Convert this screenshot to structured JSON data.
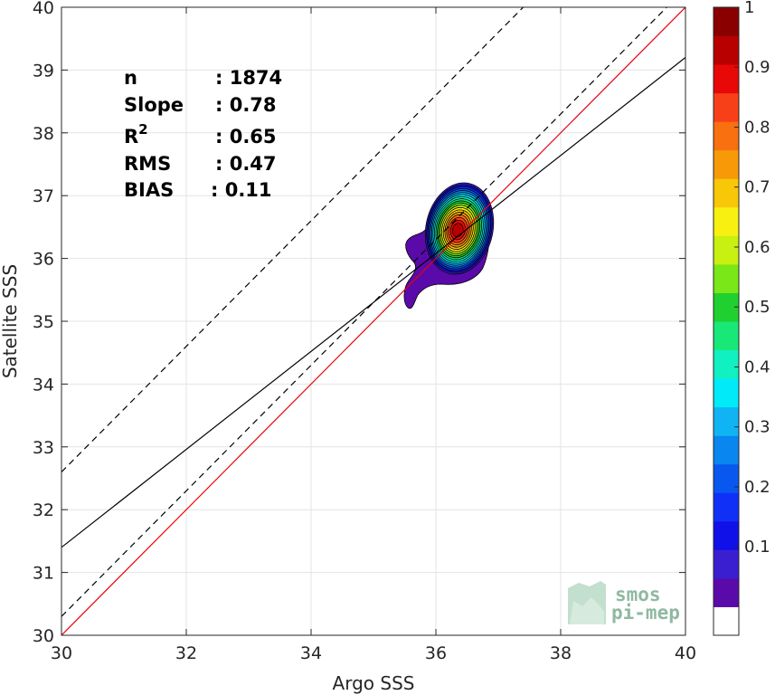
{
  "chart_data": {
    "type": "scatter",
    "subtype": "density-contour",
    "xlabel": "Argo SSS",
    "ylabel": "Satellite SSS",
    "xlim": [
      30,
      40
    ],
    "ylim": [
      30,
      40
    ],
    "xticks": [
      30,
      32,
      34,
      36,
      38,
      40
    ],
    "yticks": [
      30,
      31,
      32,
      33,
      34,
      35,
      36,
      37,
      38,
      39,
      40
    ],
    "grid": true,
    "density_peak": {
      "x": 36.35,
      "y": 36.45
    },
    "density_levels": [
      0.05,
      0.1,
      0.15,
      0.2,
      0.25,
      0.3,
      0.35,
      0.4,
      0.45,
      0.5,
      0.55,
      0.6,
      0.65,
      0.7,
      0.75,
      0.8,
      0.85,
      0.9,
      0.95,
      1.0
    ],
    "lines": [
      {
        "name": "1:1",
        "color": "#e8000b",
        "style": "solid",
        "slope": 1.0,
        "intercept": 0.0
      },
      {
        "name": "regression",
        "color": "#000000",
        "style": "solid",
        "slope": 0.78,
        "intercept": 8.0
      },
      {
        "name": "upper",
        "color": "#000000",
        "style": "dashed",
        "slope": 1.0,
        "intercept": 2.6
      },
      {
        "name": "lower",
        "color": "#000000",
        "style": "dashed",
        "slope": 1.0,
        "intercept": 0.3
      }
    ],
    "stats": [
      {
        "key": "n",
        "sup": "",
        "value": ": 1874"
      },
      {
        "key": "Slope",
        "sup": "",
        "value": ": 0.78"
      },
      {
        "key": "R",
        "sup": "2",
        "value": ": 0.65"
      },
      {
        "key": "RMS",
        "sup": "",
        "value": ": 0.47"
      },
      {
        "key": "BIAS",
        "sup": "",
        "value": ": 0.11"
      }
    ],
    "colorbar": {
      "min": 0,
      "max": 1,
      "labels": [
        "0.1",
        "0.2",
        "0.3",
        "0.4",
        "0.5",
        "0.6",
        "0.7",
        "0.8",
        "0.9",
        "1"
      ],
      "label_values": [
        0.1,
        0.2,
        0.3,
        0.4,
        0.5,
        0.6,
        0.7,
        0.8,
        0.9,
        1.0
      ],
      "colors": [
        "#ffffff",
        "#5a0aa8",
        "#3a1fd0",
        "#1010e8",
        "#1030f8",
        "#0858f0",
        "#0a86f0",
        "#10b4f4",
        "#00eaf8",
        "#10f0c0",
        "#18e878",
        "#20d030",
        "#7ae818",
        "#c8f010",
        "#f8f010",
        "#f8c808",
        "#f89a08",
        "#f87010",
        "#f84018",
        "#e80808",
        "#b80000",
        "#8a0000"
      ]
    }
  },
  "logo": {
    "line1": "smos",
    "line2": "pi-mep"
  }
}
